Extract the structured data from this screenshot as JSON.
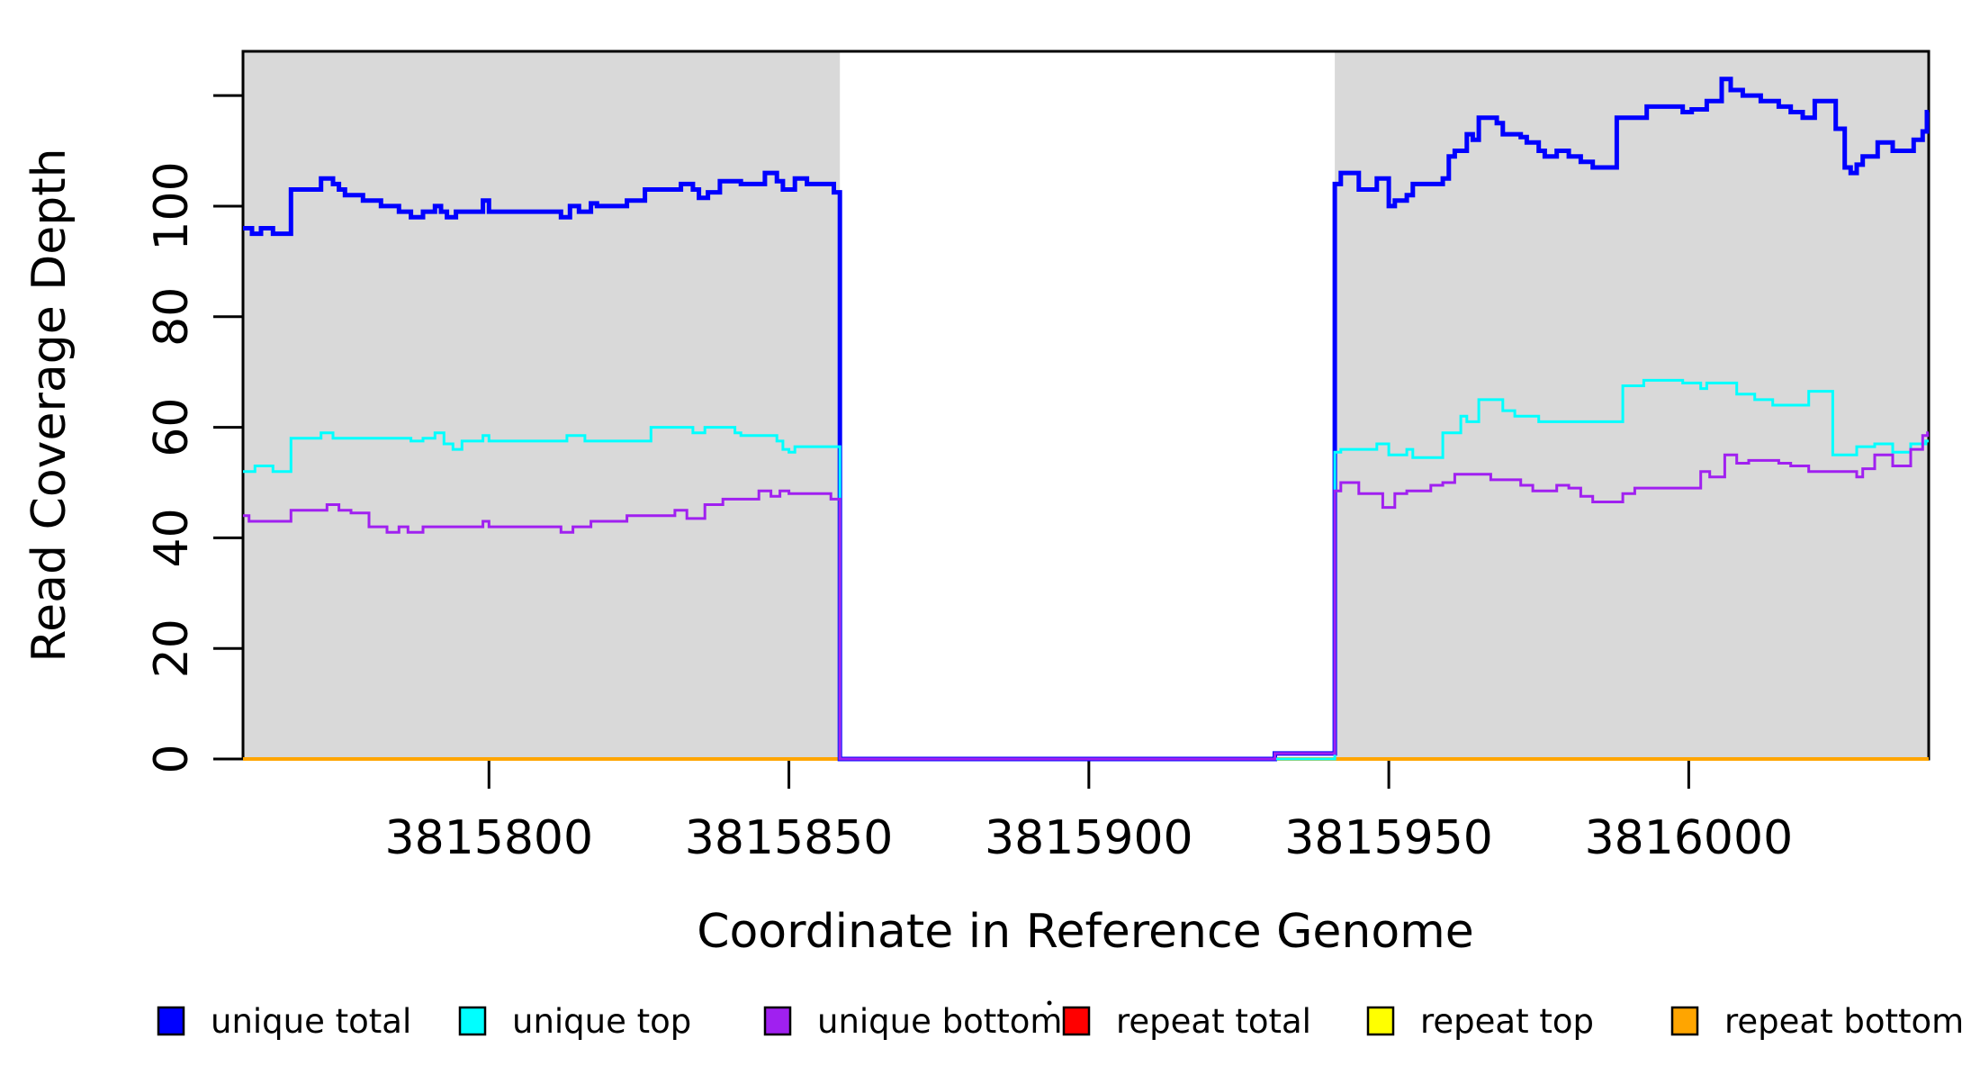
{
  "chart_data": {
    "type": "line",
    "style": "step",
    "title": "",
    "xlabel": "Coordinate in Reference Genome",
    "ylabel": "Read Coverage Depth",
    "xlim": [
      3815759,
      3816040
    ],
    "ylim": [
      0,
      128
    ],
    "grid": false,
    "background_color": "#ffffff",
    "shaded_region_color": "#d9d9d9",
    "shaded_regions": [
      {
        "x0": 3815759,
        "x1": 3815858.5
      },
      {
        "x0": 3815941,
        "x1": 3816040
      }
    ],
    "x_ticks": [
      {
        "value": 3815800,
        "label": "3815800"
      },
      {
        "value": 3815850,
        "label": "3815850"
      },
      {
        "value": 3815900,
        "label": "3815900"
      },
      {
        "value": 3815950,
        "label": "3815950"
      },
      {
        "value": 3816000,
        "label": "3816000"
      }
    ],
    "y_ticks": [
      {
        "value": 0,
        "label": "0"
      },
      {
        "value": 20,
        "label": "20"
      },
      {
        "value": 40,
        "label": "40"
      },
      {
        "value": 60,
        "label": "60"
      },
      {
        "value": 80,
        "label": "80"
      },
      {
        "value": 100,
        "label": "100"
      },
      {
        "value": 120,
        "label": ""
      }
    ],
    "legend": {
      "position": "bottom",
      "entries": [
        {
          "label": "unique total",
          "color": "#0000ff"
        },
        {
          "label": "unique top",
          "color": "#00ffff"
        },
        {
          "label": "unique bottom",
          "color": "#a020f0"
        },
        {
          "label": "repeat total",
          "color": "#ff0000"
        },
        {
          "label": "repeat top",
          "color": "#ffff00"
        },
        {
          "label": "repeat bottom",
          "color": "#ffa500"
        }
      ]
    },
    "series": [
      {
        "name": "repeat total",
        "color": "#ff0000",
        "width": 4,
        "points": [
          [
            3815759,
            0
          ]
        ]
      },
      {
        "name": "repeat top",
        "color": "#ffff00",
        "width": 4,
        "points": [
          [
            3815759,
            0
          ]
        ]
      },
      {
        "name": "repeat bottom",
        "color": "#ffa500",
        "width": 4,
        "points": [
          [
            3815759,
            0
          ]
        ]
      },
      {
        "name": "unique total",
        "color": "#0000ff",
        "width": 5,
        "points": [
          [
            3815759,
            96
          ],
          [
            3815760.5,
            95
          ],
          [
            3815762,
            96
          ],
          [
            3815764,
            95
          ],
          [
            3815767,
            103
          ],
          [
            3815772,
            105
          ],
          [
            3815774,
            104
          ],
          [
            3815775,
            103
          ],
          [
            3815776,
            102
          ],
          [
            3815779,
            101
          ],
          [
            3815782,
            100
          ],
          [
            3815785,
            99
          ],
          [
            3815787,
            98
          ],
          [
            3815789,
            99
          ],
          [
            3815791,
            100
          ],
          [
            3815792,
            99
          ],
          [
            3815793,
            98
          ],
          [
            3815794.5,
            99
          ],
          [
            3815799,
            101
          ],
          [
            3815800,
            99
          ],
          [
            3815812,
            98
          ],
          [
            3815813.5,
            100
          ],
          [
            3815815,
            99
          ],
          [
            3815817,
            100.5
          ],
          [
            3815818,
            100
          ],
          [
            3815823,
            101
          ],
          [
            3815826,
            103
          ],
          [
            3815832,
            104
          ],
          [
            3815834,
            103
          ],
          [
            3815835,
            101.5
          ],
          [
            3815836.5,
            102.5
          ],
          [
            3815838.5,
            104.5
          ],
          [
            3815842,
            104
          ],
          [
            3815846,
            106
          ],
          [
            3815848,
            104.5
          ],
          [
            3815849,
            103
          ],
          [
            3815851,
            105
          ],
          [
            3815853,
            104
          ],
          [
            3815857.5,
            102.5
          ],
          [
            3815858.5,
            0
          ],
          [
            3815931,
            1
          ],
          [
            3815941,
            104
          ],
          [
            3815942,
            106
          ],
          [
            3815945,
            103
          ],
          [
            3815948,
            105
          ],
          [
            3815950,
            100
          ],
          [
            3815951,
            101
          ],
          [
            3815953,
            102
          ],
          [
            3815954,
            104
          ],
          [
            3815959,
            105
          ],
          [
            3815960,
            109
          ],
          [
            3815961,
            110
          ],
          [
            3815963,
            113
          ],
          [
            3815964,
            112
          ],
          [
            3815965,
            116
          ],
          [
            3815968,
            115
          ],
          [
            3815969,
            113
          ],
          [
            3815972,
            112.5
          ],
          [
            3815973,
            111.5
          ],
          [
            3815975,
            110
          ],
          [
            3815976,
            109
          ],
          [
            3815978,
            110
          ],
          [
            3815980,
            109
          ],
          [
            3815982,
            108
          ],
          [
            3815984,
            107
          ],
          [
            3815988,
            116
          ],
          [
            3815993,
            118
          ],
          [
            3815999,
            117
          ],
          [
            3816000.5,
            117.5
          ],
          [
            3816003,
            119
          ],
          [
            3816005.5,
            123
          ],
          [
            3816007,
            121
          ],
          [
            3816009,
            120
          ],
          [
            3816012,
            119
          ],
          [
            3816015,
            118
          ],
          [
            3816017,
            117
          ],
          [
            3816019,
            116
          ],
          [
            3816021,
            119
          ],
          [
            3816024.5,
            114
          ],
          [
            3816026,
            107
          ],
          [
            3816027,
            106
          ],
          [
            3816028,
            107.5
          ],
          [
            3816029,
            109
          ],
          [
            3816031.5,
            111.5
          ],
          [
            3816034,
            110
          ],
          [
            3816037.5,
            112
          ],
          [
            3816039,
            113.5
          ],
          [
            3816039.7,
            117
          ]
        ]
      },
      {
        "name": "unique top",
        "color": "#00ffff",
        "width": 3,
        "points": [
          [
            3815759,
            52
          ],
          [
            3815761,
            53
          ],
          [
            3815764,
            52
          ],
          [
            3815767,
            58
          ],
          [
            3815772,
            59
          ],
          [
            3815774,
            58
          ],
          [
            3815787,
            57.5
          ],
          [
            3815789,
            58
          ],
          [
            3815791,
            59
          ],
          [
            3815792.5,
            57
          ],
          [
            3815794,
            56
          ],
          [
            3815795.5,
            57.5
          ],
          [
            3815799,
            58.5
          ],
          [
            3815800,
            57.5
          ],
          [
            3815813,
            58.5
          ],
          [
            3815816,
            57.5
          ],
          [
            3815827,
            60
          ],
          [
            3815834,
            59
          ],
          [
            3815836,
            60
          ],
          [
            3815841,
            59
          ],
          [
            3815842,
            58.5
          ],
          [
            3815848,
            57.5
          ],
          [
            3815849,
            56
          ],
          [
            3815850,
            55.5
          ],
          [
            3815851,
            56.5
          ],
          [
            3815858.5,
            0
          ],
          [
            3815941,
            55.5
          ],
          [
            3815942,
            56
          ],
          [
            3815948,
            57
          ],
          [
            3815950,
            55
          ],
          [
            3815953,
            56
          ],
          [
            3815954,
            54.5
          ],
          [
            3815959,
            59
          ],
          [
            3815962,
            62
          ],
          [
            3815963,
            61
          ],
          [
            3815965,
            65
          ],
          [
            3815969,
            63
          ],
          [
            3815971,
            62
          ],
          [
            3815975,
            61
          ],
          [
            3815989,
            67.5
          ],
          [
            3815992.5,
            68.5
          ],
          [
            3815999,
            68
          ],
          [
            3816002,
            67
          ],
          [
            3816003,
            68
          ],
          [
            3816008,
            66
          ],
          [
            3816011,
            65
          ],
          [
            3816014,
            64
          ],
          [
            3816020,
            66.5
          ],
          [
            3816024,
            55
          ],
          [
            3816028,
            56.5
          ],
          [
            3816031,
            57
          ],
          [
            3816034,
            55.5
          ],
          [
            3816037,
            57
          ],
          [
            3816039.5,
            57.5
          ]
        ]
      },
      {
        "name": "unique bottom",
        "color": "#a020f0",
        "width": 3,
        "points": [
          [
            3815759,
            44
          ],
          [
            3815760,
            43
          ],
          [
            3815767,
            45
          ],
          [
            3815773,
            46
          ],
          [
            3815775,
            45
          ],
          [
            3815777,
            44.5
          ],
          [
            3815780,
            42
          ],
          [
            3815783,
            41
          ],
          [
            3815785,
            42
          ],
          [
            3815786.5,
            41
          ],
          [
            3815789,
            42
          ],
          [
            3815799,
            43
          ],
          [
            3815800,
            42
          ],
          [
            3815812,
            41
          ],
          [
            3815814,
            42
          ],
          [
            3815817,
            43
          ],
          [
            3815823,
            44
          ],
          [
            3815831,
            45
          ],
          [
            3815833,
            43.5
          ],
          [
            3815836,
            46
          ],
          [
            3815839,
            47
          ],
          [
            3815845,
            48.5
          ],
          [
            3815847,
            47.5
          ],
          [
            3815848.5,
            48.5
          ],
          [
            3815850,
            48
          ],
          [
            3815857,
            47
          ],
          [
            3815858.5,
            0
          ],
          [
            3815931,
            1
          ],
          [
            3815941,
            48.5
          ],
          [
            3815942,
            50
          ],
          [
            3815945,
            48
          ],
          [
            3815949,
            45.5
          ],
          [
            3815951,
            48
          ],
          [
            3815953,
            48.5
          ],
          [
            3815957,
            49.5
          ],
          [
            3815959,
            50
          ],
          [
            3815961,
            51.5
          ],
          [
            3815967,
            50.5
          ],
          [
            3815972,
            49.5
          ],
          [
            3815974,
            48.5
          ],
          [
            3815978,
            49.5
          ],
          [
            3815980,
            49
          ],
          [
            3815982,
            47.5
          ],
          [
            3815984,
            46.5
          ],
          [
            3815989,
            48
          ],
          [
            3815991,
            49
          ],
          [
            3816002,
            52
          ],
          [
            3816003.5,
            51
          ],
          [
            3816006,
            55
          ],
          [
            3816008,
            53.5
          ],
          [
            3816010,
            54
          ],
          [
            3816015,
            53.5
          ],
          [
            3816017,
            53
          ],
          [
            3816020,
            52
          ],
          [
            3816028,
            51
          ],
          [
            3816029,
            52.5
          ],
          [
            3816031,
            55
          ],
          [
            3816034,
            53
          ],
          [
            3816037,
            56
          ],
          [
            3816039,
            58.5
          ],
          [
            3816039.8,
            59
          ]
        ]
      }
    ],
    "annotations": {
      "stray_dot": "."
    }
  }
}
